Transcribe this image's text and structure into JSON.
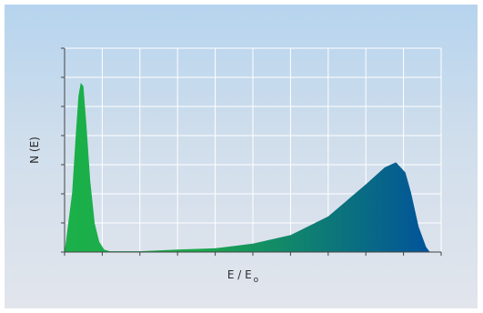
{
  "chart_data": {
    "type": "area",
    "title": "",
    "xlabel": "E / E",
    "xlabel_subscript": "o",
    "ylabel": "N (E)",
    "grid": true,
    "legend": "none",
    "xlim": [
      0,
      1
    ],
    "ylim": [
      0,
      1
    ],
    "x_divisions": 10,
    "y_divisions": 7,
    "colors": {
      "peak_fill": "#1bb04a",
      "gradient_start": "#1ba84c",
      "gradient_end": "#004f9e",
      "grid": "#ffffff",
      "axis": "#444444"
    },
    "series": [
      {
        "values": [
          [
            0.0,
            0.0
          ],
          [
            0.02,
            0.35
          ],
          [
            0.03,
            0.7
          ],
          [
            0.037,
            0.925
          ],
          [
            0.043,
            1.0
          ],
          [
            0.05,
            0.98
          ],
          [
            0.058,
            0.75
          ],
          [
            0.068,
            0.42
          ],
          [
            0.08,
            0.17
          ],
          [
            0.092,
            0.06
          ],
          [
            0.105,
            0.015
          ],
          [
            0.12,
            0.005
          ],
          [
            0.2,
            0.005
          ],
          [
            0.3,
            0.015
          ],
          [
            0.4,
            0.022
          ],
          [
            0.5,
            0.05
          ],
          [
            0.6,
            0.1
          ],
          [
            0.7,
            0.21
          ],
          [
            0.8,
            0.4
          ],
          [
            0.85,
            0.5
          ],
          [
            0.88,
            0.53
          ],
          [
            0.905,
            0.47
          ],
          [
            0.92,
            0.35
          ],
          [
            0.94,
            0.15
          ],
          [
            0.96,
            0.03
          ],
          [
            0.97,
            0.0
          ]
        ]
      }
    ]
  }
}
